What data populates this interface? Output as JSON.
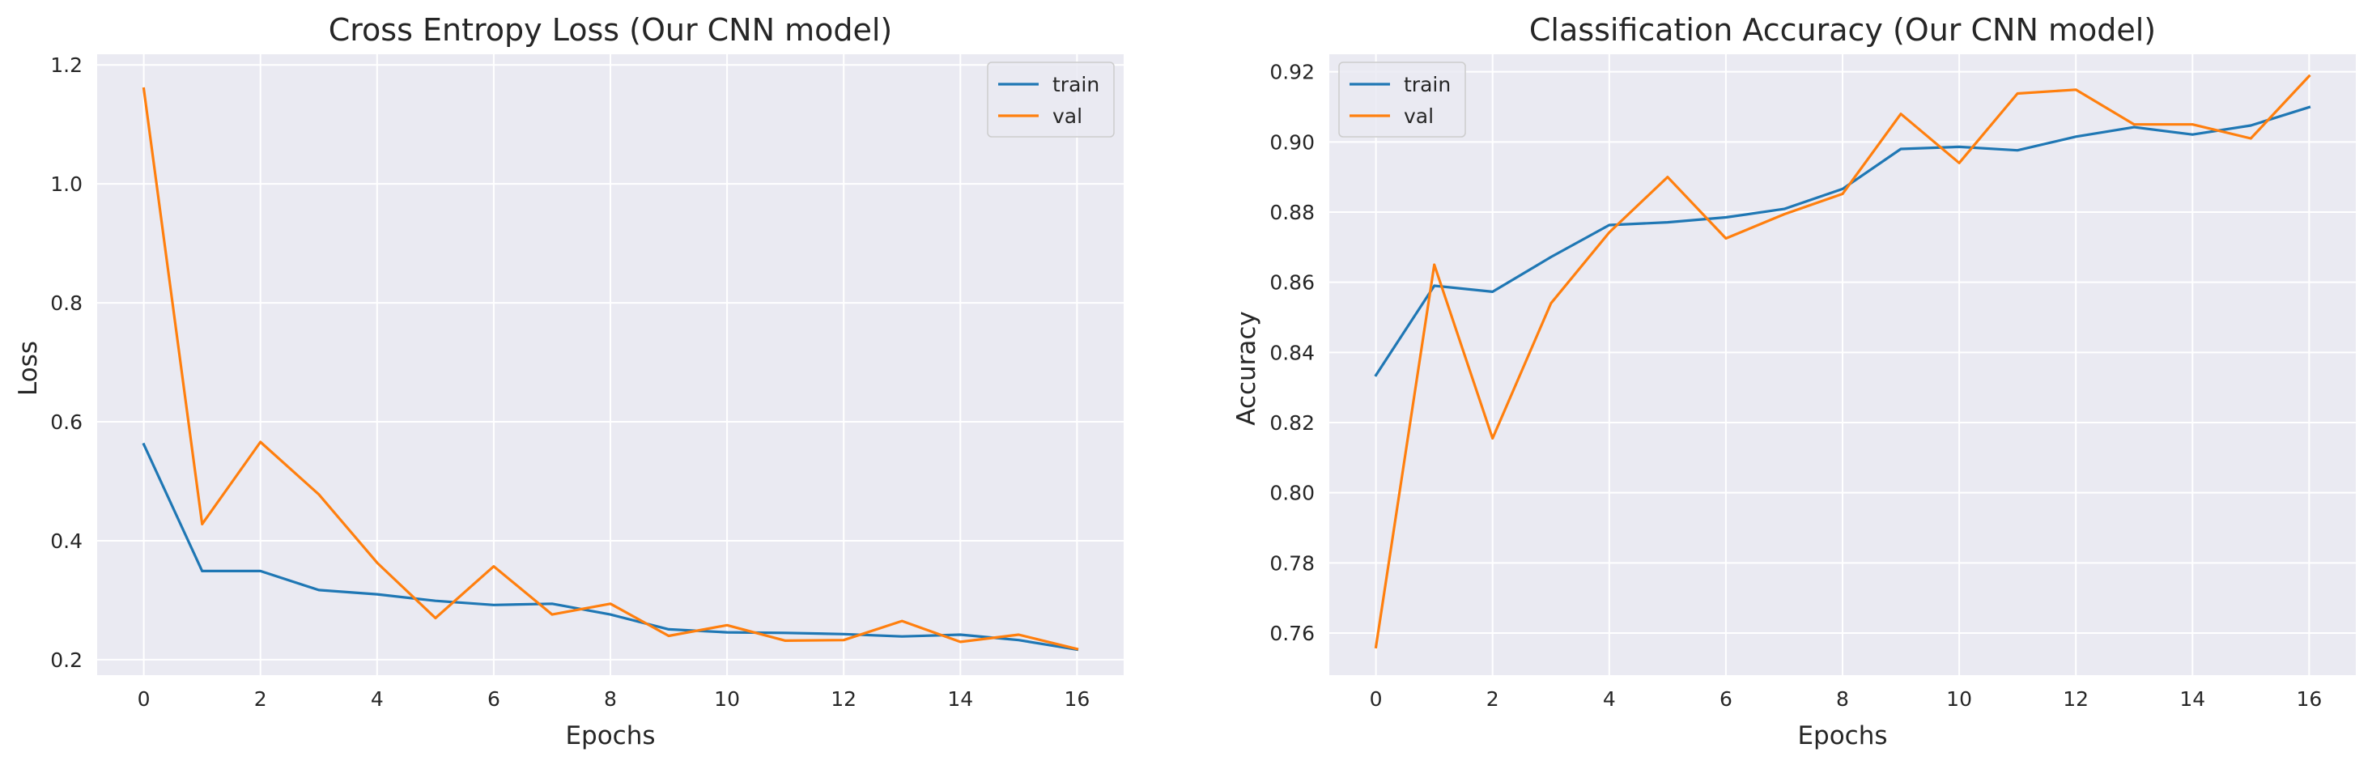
{
  "chart_data": [
    {
      "type": "line",
      "title": "Cross Entropy Loss (Our CNN model)",
      "xlabel": "Epochs",
      "ylabel": "Loss",
      "xlim": [
        -0.8,
        16.8
      ],
      "ylim": [
        0.174,
        1.218
      ],
      "xticks": [
        0,
        2,
        4,
        6,
        8,
        10,
        12,
        14,
        16
      ],
      "yticks": [
        0.2,
        0.4,
        0.6,
        0.8,
        1.0,
        1.2
      ],
      "ytick_labels": [
        "0.2",
        "0.4",
        "0.6",
        "0.8",
        "1.0",
        "1.2"
      ],
      "grid": true,
      "legend_position": "top-right",
      "x": [
        0,
        1,
        2,
        3,
        4,
        5,
        6,
        7,
        8,
        9,
        10,
        11,
        12,
        13,
        14,
        15,
        16
      ],
      "series": [
        {
          "name": "train",
          "color": "#1f77b4",
          "values": [
            0.562,
            0.349,
            0.349,
            0.317,
            0.31,
            0.299,
            0.292,
            0.294,
            0.276,
            0.251,
            0.246,
            0.245,
            0.243,
            0.239,
            0.242,
            0.233,
            0.217
          ]
        },
        {
          "name": "val",
          "color": "#ff7f0e",
          "values": [
            1.16,
            0.428,
            0.566,
            0.478,
            0.363,
            0.27,
            0.357,
            0.276,
            0.294,
            0.24,
            0.258,
            0.232,
            0.233,
            0.265,
            0.23,
            0.242,
            0.218
          ]
        }
      ]
    },
    {
      "type": "line",
      "title": "Classification Accuracy (Our CNN model)",
      "xlabel": "Epochs",
      "ylabel": "Accuracy",
      "xlim": [
        -0.8,
        16.8
      ],
      "ylim": [
        0.748,
        0.925
      ],
      "xticks": [
        0,
        2,
        4,
        6,
        8,
        10,
        12,
        14,
        16
      ],
      "yticks": [
        0.76,
        0.78,
        0.8,
        0.82,
        0.84,
        0.86,
        0.88,
        0.9,
        0.92
      ],
      "ytick_labels": [
        "0.76",
        "0.78",
        "0.80",
        "0.82",
        "0.84",
        "0.86",
        "0.88",
        "0.90",
        "0.92"
      ],
      "grid": true,
      "legend_position": "top-left",
      "x": [
        0,
        1,
        2,
        3,
        4,
        5,
        6,
        7,
        8,
        9,
        10,
        11,
        12,
        13,
        14,
        15,
        16
      ],
      "series": [
        {
          "name": "train",
          "color": "#1f77b4",
          "values": [
            0.8335,
            0.859,
            0.8573,
            0.8672,
            0.8763,
            0.8771,
            0.8785,
            0.8809,
            0.8866,
            0.898,
            0.8986,
            0.8976,
            0.9015,
            0.9042,
            0.9021,
            0.9047,
            0.9099
          ]
        },
        {
          "name": "val",
          "color": "#ff7f0e",
          "values": [
            0.756,
            0.865,
            0.8155,
            0.854,
            0.8742,
            0.89,
            0.8725,
            0.8794,
            0.8852,
            0.908,
            0.894,
            0.9138,
            0.9149,
            0.905,
            0.905,
            0.901,
            0.9188
          ]
        }
      ]
    }
  ]
}
